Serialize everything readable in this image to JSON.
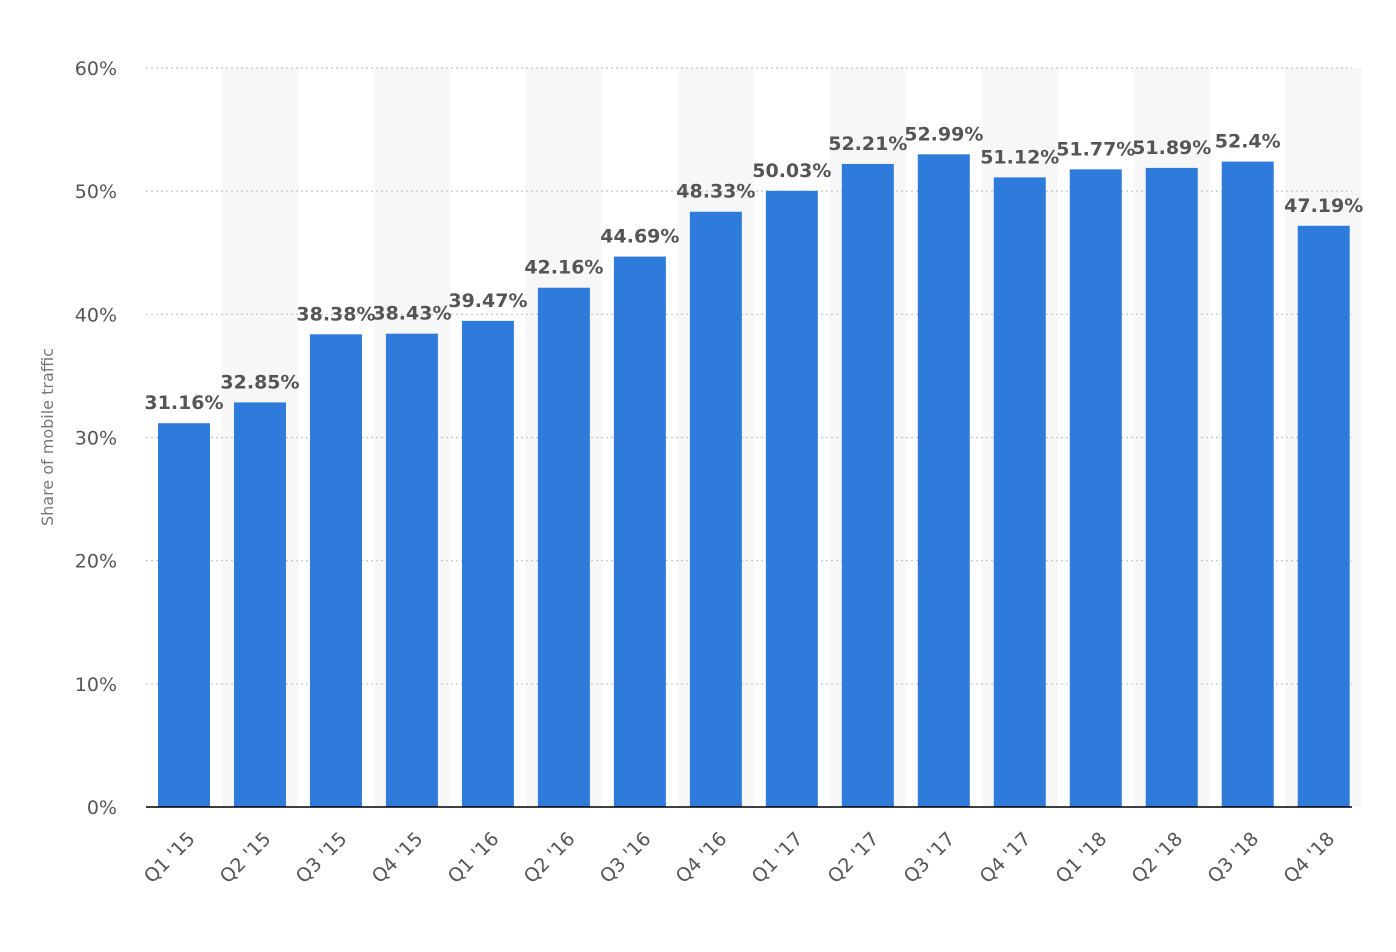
{
  "chart_data": {
    "type": "bar",
    "categories": [
      "Q1 '15",
      "Q2 '15",
      "Q3 '15",
      "Q4 '15",
      "Q1 '16",
      "Q2 '16",
      "Q3 '16",
      "Q4 '16",
      "Q1 '17",
      "Q2 '17",
      "Q3 '17",
      "Q4 '17",
      "Q1 '18",
      "Q2 '18",
      "Q3 '18",
      "Q4 '18"
    ],
    "values": [
      31.16,
      32.85,
      38.38,
      38.43,
      39.47,
      42.16,
      44.69,
      48.33,
      50.03,
      52.21,
      52.99,
      51.12,
      51.77,
      51.89,
      52.4,
      47.19
    ],
    "data_labels": [
      "31.16%",
      "32.85%",
      "38.38%",
      "38.43%",
      "39.47%",
      "42.16%",
      "44.69%",
      "48.33%",
      "50.03%",
      "52.21%",
      "52.99%",
      "51.12%",
      "51.77%",
      "51.89%",
      "52.4%",
      "47.19%"
    ],
    "title": "",
    "xlabel": "",
    "ylabel": "Share of mobile traffic",
    "ylim": [
      0,
      60
    ],
    "yticks": [
      0,
      10,
      20,
      30,
      40,
      50,
      60
    ],
    "ytick_labels": [
      "0%",
      "10%",
      "20%",
      "30%",
      "40%",
      "50%",
      "60%"
    ],
    "grid": true,
    "bar_color": "#2e7bdb",
    "alt_band_color": "#f7f7f7",
    "grid_color": "#c4c4c4",
    "axis_color": "#000000"
  }
}
